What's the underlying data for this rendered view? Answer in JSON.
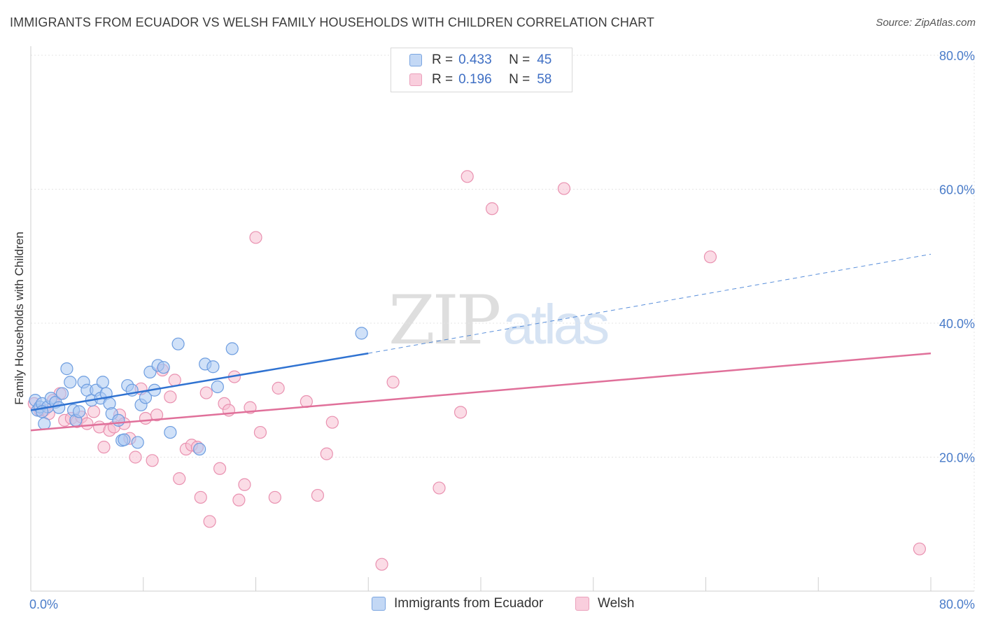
{
  "header": {
    "title": "IMMIGRANTS FROM ECUADOR VS WELSH FAMILY HOUSEHOLDS WITH CHILDREN CORRELATION CHART",
    "source": "Source: ZipAtlas.com"
  },
  "watermark": {
    "zip": "ZIP",
    "atlas": "atlas"
  },
  "legend": {
    "rows": [
      {
        "r_label": "R =",
        "r_value": "0.433",
        "n_label": "N =",
        "n_value": "45"
      },
      {
        "r_label": "R =",
        "r_value": "0.196",
        "n_label": "N =",
        "n_value": "58"
      }
    ]
  },
  "bottom_legend": {
    "items": [
      {
        "label": "Immigrants from Ecuador"
      },
      {
        "label": "Welsh"
      }
    ]
  },
  "colors": {
    "blue_fill": "#aac8f2",
    "blue_stroke": "#6d9de0",
    "blue_line": "#2f72d1",
    "pink_fill": "#f7c0d2",
    "pink_stroke": "#e991b0",
    "pink_line": "#e0709a",
    "tick_text": "#4a7cc9"
  },
  "chart_data": {
    "type": "scatter",
    "title": "IMMIGRANTS FROM ECUADOR VS WELSH FAMILY HOUSEHOLDS WITH CHILDREN CORRELATION CHART",
    "xlabel": "",
    "ylabel": "Family Households with Children",
    "xlim": [
      0,
      80
    ],
    "ylim": [
      0,
      80
    ],
    "x_tick_labels": [
      "0.0%",
      "80.0%"
    ],
    "y_tick_labels": [
      "20.0%",
      "40.0%",
      "60.0%",
      "80.0%"
    ],
    "y_ticks": [
      20,
      40,
      60,
      80
    ],
    "grid": true,
    "legend_position": "top-center",
    "series": [
      {
        "name": "Immigrants from Ecuador",
        "color": "#aac8f2",
        "points": [
          [
            0.4,
            28.5
          ],
          [
            0.6,
            27.0
          ],
          [
            0.8,
            27.5
          ],
          [
            1.0,
            28.0
          ],
          [
            1.2,
            25.0
          ],
          [
            1.5,
            27.5
          ],
          [
            1.8,
            28.8
          ],
          [
            2.2,
            28.2
          ],
          [
            2.8,
            29.5
          ],
          [
            3.2,
            33.2
          ],
          [
            3.5,
            31.2
          ],
          [
            3.8,
            27.0
          ],
          [
            4.0,
            25.5
          ],
          [
            4.3,
            26.8
          ],
          [
            4.7,
            31.2
          ],
          [
            5.0,
            30.0
          ],
          [
            5.4,
            28.5
          ],
          [
            5.8,
            30.0
          ],
          [
            6.2,
            28.8
          ],
          [
            6.4,
            31.2
          ],
          [
            6.7,
            29.5
          ],
          [
            7.0,
            28.0
          ],
          [
            7.2,
            26.5
          ],
          [
            7.8,
            25.5
          ],
          [
            8.1,
            22.5
          ],
          [
            8.3,
            22.6
          ],
          [
            8.6,
            30.7
          ],
          [
            9.0,
            30.0
          ],
          [
            9.5,
            22.2
          ],
          [
            9.8,
            27.8
          ],
          [
            10.2,
            28.9
          ],
          [
            10.6,
            32.7
          ],
          [
            11.0,
            30.0
          ],
          [
            11.3,
            33.7
          ],
          [
            11.8,
            33.4
          ],
          [
            12.4,
            23.7
          ],
          [
            13.1,
            36.9
          ],
          [
            15.0,
            21.2
          ],
          [
            15.5,
            33.9
          ],
          [
            16.2,
            33.5
          ],
          [
            16.6,
            30.5
          ],
          [
            17.9,
            36.2
          ],
          [
            29.4,
            38.5
          ],
          [
            1.0,
            26.8
          ],
          [
            2.5,
            27.4
          ]
        ]
      },
      {
        "name": "Welsh",
        "color": "#f7c0d2",
        "points": [
          [
            0.3,
            28.0
          ],
          [
            0.8,
            27.0
          ],
          [
            1.2,
            27.0
          ],
          [
            1.6,
            26.5
          ],
          [
            2.0,
            28.5
          ],
          [
            2.6,
            29.5
          ],
          [
            3.0,
            25.5
          ],
          [
            3.6,
            25.8
          ],
          [
            4.1,
            25.3
          ],
          [
            4.5,
            26.0
          ],
          [
            5.0,
            25.0
          ],
          [
            5.6,
            26.8
          ],
          [
            6.1,
            24.5
          ],
          [
            6.5,
            21.5
          ],
          [
            7.0,
            24.0
          ],
          [
            7.4,
            24.5
          ],
          [
            7.9,
            26.3
          ],
          [
            8.3,
            25.0
          ],
          [
            8.8,
            22.8
          ],
          [
            9.3,
            20.0
          ],
          [
            9.8,
            30.2
          ],
          [
            10.2,
            25.8
          ],
          [
            10.8,
            19.5
          ],
          [
            11.2,
            26.3
          ],
          [
            11.7,
            33.0
          ],
          [
            12.4,
            29.0
          ],
          [
            12.8,
            31.5
          ],
          [
            13.2,
            16.8
          ],
          [
            13.8,
            21.2
          ],
          [
            14.3,
            21.8
          ],
          [
            14.8,
            21.5
          ],
          [
            15.1,
            14.0
          ],
          [
            15.6,
            29.6
          ],
          [
            15.9,
            10.4
          ],
          [
            16.8,
            18.3
          ],
          [
            17.2,
            28.0
          ],
          [
            17.6,
            27.0
          ],
          [
            18.1,
            32.0
          ],
          [
            18.5,
            13.6
          ],
          [
            19.0,
            15.9
          ],
          [
            19.5,
            27.4
          ],
          [
            20.0,
            52.8
          ],
          [
            20.4,
            23.7
          ],
          [
            21.7,
            14.0
          ],
          [
            22.0,
            30.3
          ],
          [
            24.5,
            28.3
          ],
          [
            25.5,
            14.3
          ],
          [
            26.3,
            20.5
          ],
          [
            26.8,
            25.2
          ],
          [
            31.2,
            4.0
          ],
          [
            32.2,
            31.2
          ],
          [
            36.3,
            15.4
          ],
          [
            38.2,
            26.7
          ],
          [
            38.8,
            61.9
          ],
          [
            41.0,
            57.1
          ],
          [
            47.4,
            60.1
          ],
          [
            60.4,
            49.9
          ],
          [
            79.0,
            6.3
          ]
        ]
      }
    ],
    "trend_lines": [
      {
        "series": "Immigrants from Ecuador",
        "x_start": 0,
        "y_start": 27.0,
        "x_solid_end": 30.0,
        "y_solid_end": 35.5,
        "x_end": 80,
        "y_end": 50.3
      },
      {
        "series": "Welsh",
        "x_start": 0,
        "y_start": 24.0,
        "x_end": 80,
        "y_end": 35.5
      }
    ]
  }
}
